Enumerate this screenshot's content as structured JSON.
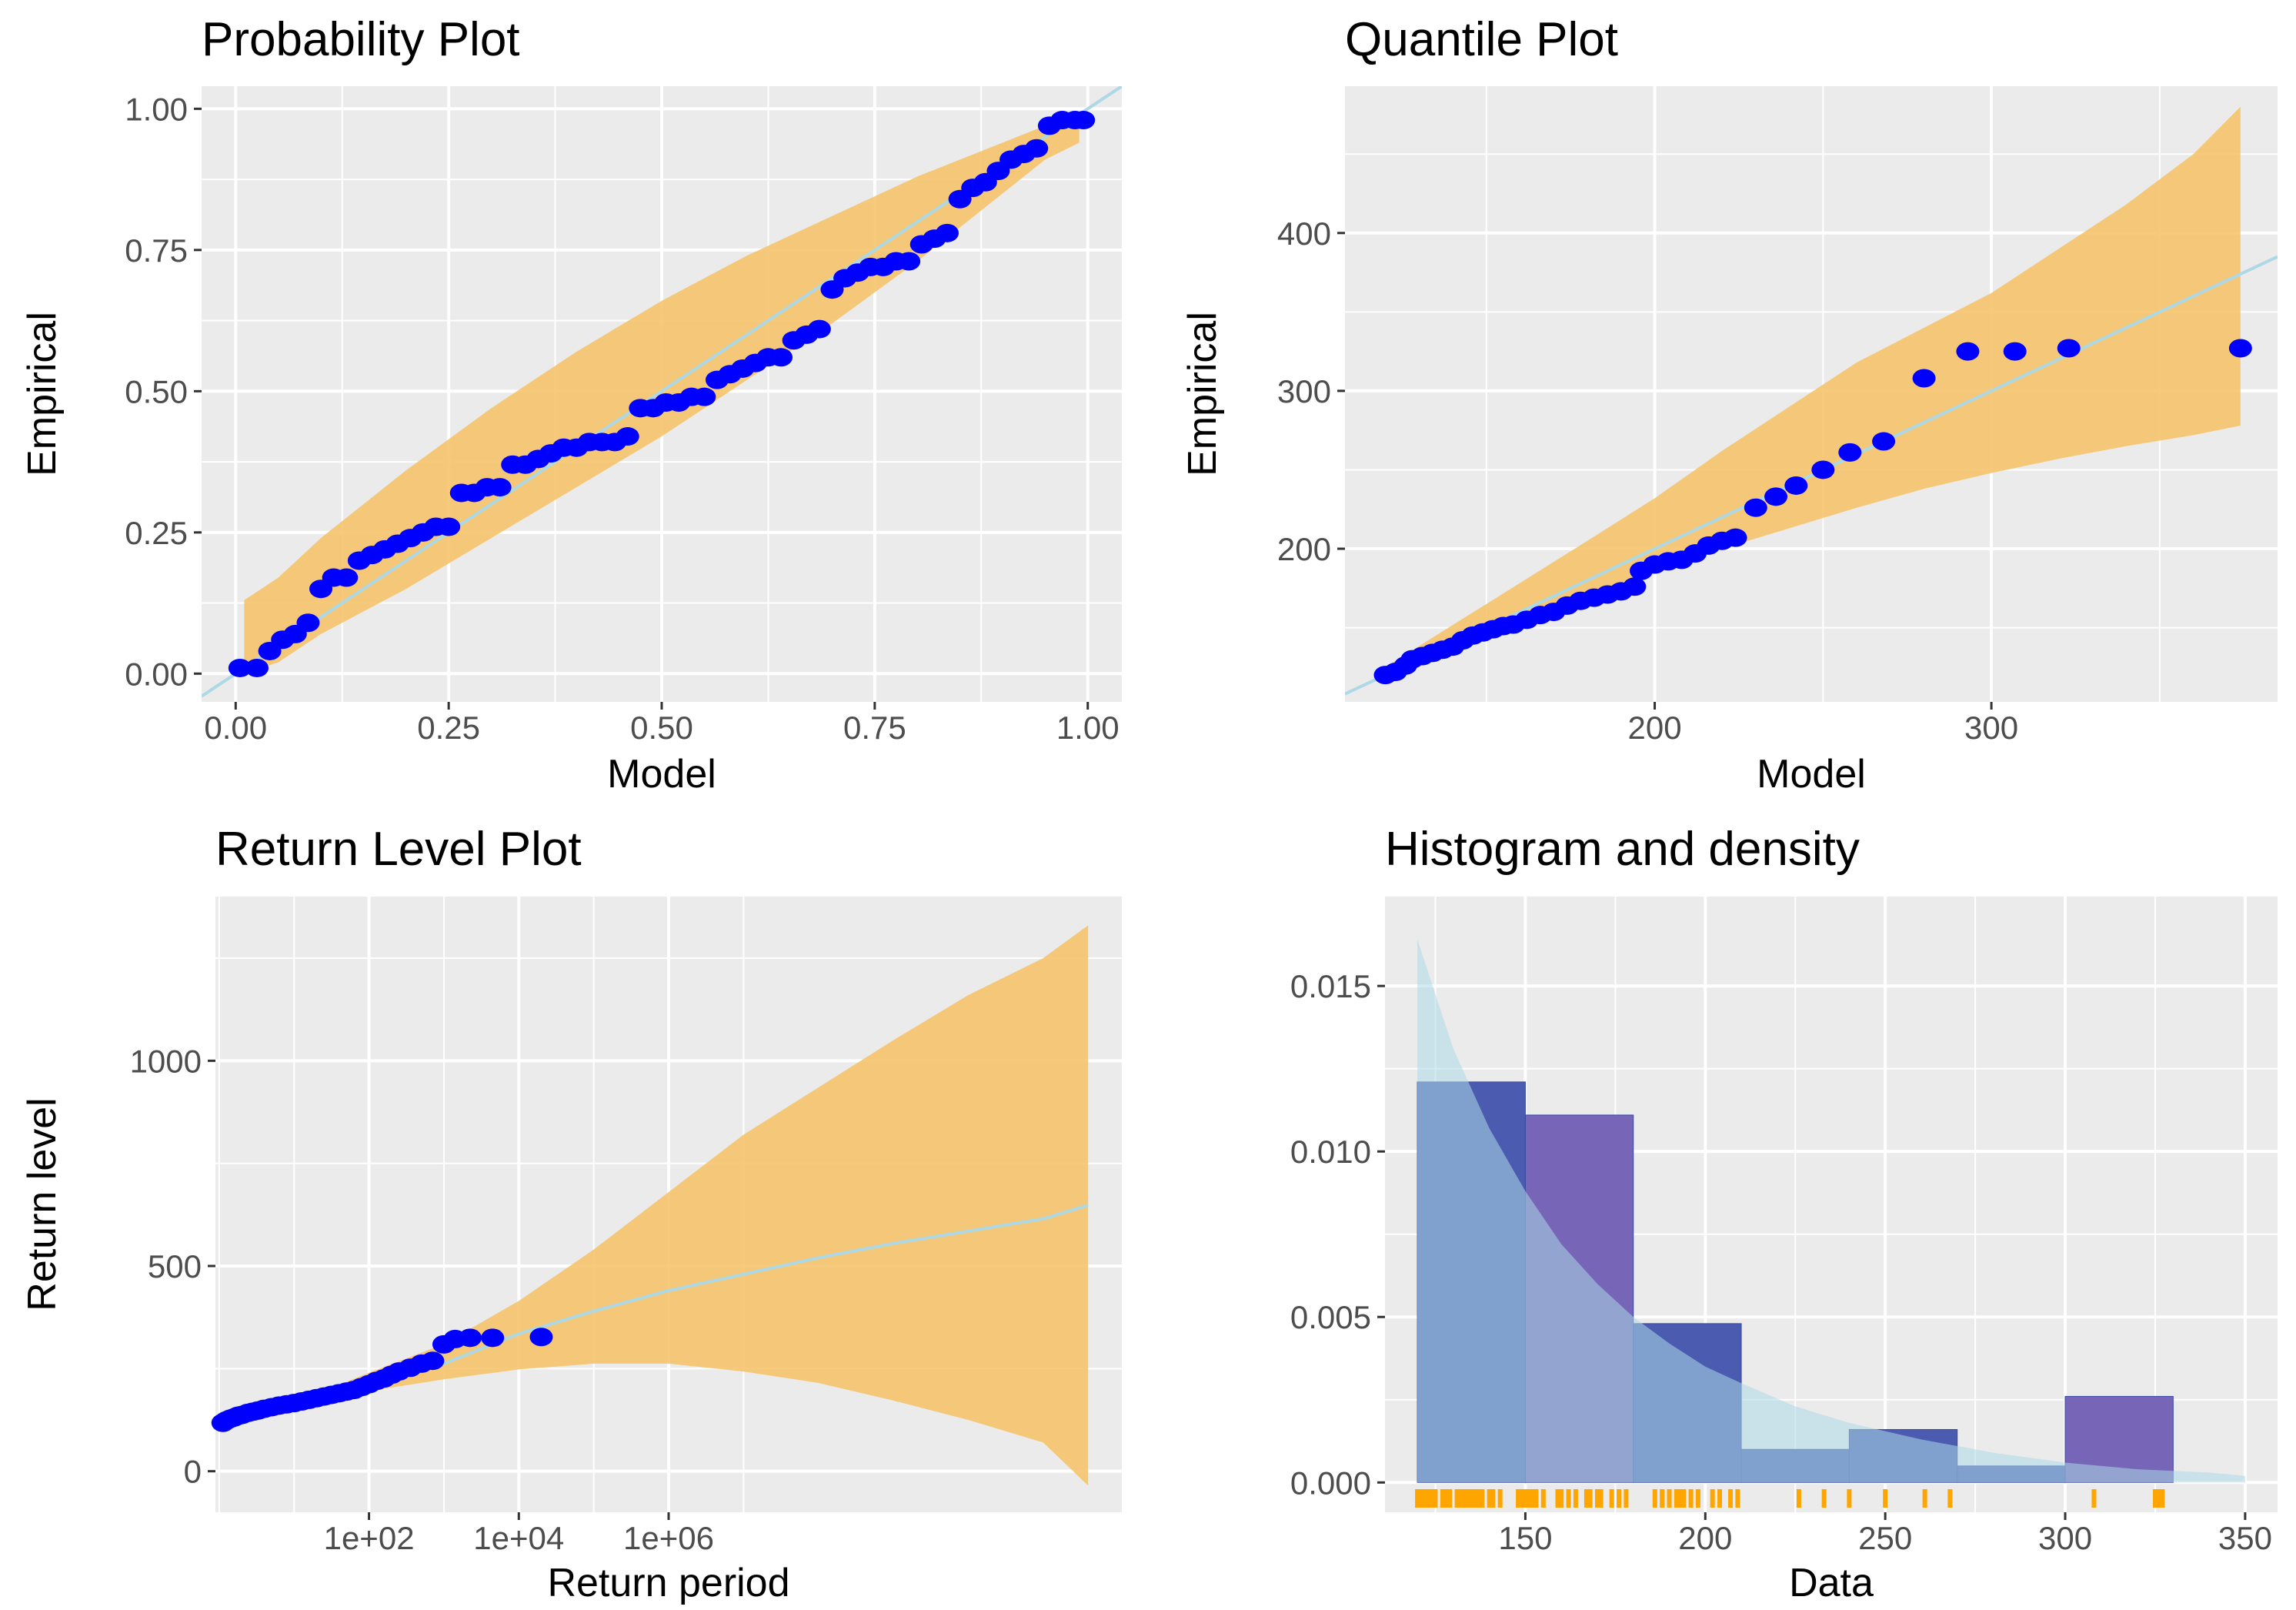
{
  "colors": {
    "panel_bg": "#ebebeb",
    "grid": "#ffffff",
    "band": "#f5c46b",
    "fit_line": "#add8e6",
    "points": "#0000ff",
    "hist_fill": "#4b5bb0",
    "hist_fill_alt": "#7765b8",
    "density": "#add8e6",
    "rug": "#ffa500"
  },
  "chart_data": [
    {
      "id": "probability",
      "type": "scatter",
      "title": "Probability Plot",
      "xlabel": "Model",
      "ylabel": "Empirical",
      "xlim": [
        -0.04,
        1.04
      ],
      "ylim": [
        -0.05,
        1.04
      ],
      "xticks": [
        0,
        0.25,
        0.5,
        0.75,
        1
      ],
      "xtick_labels": [
        "0.00",
        "0.25",
        "0.50",
        "0.75",
        "1.00"
      ],
      "yticks": [
        0,
        0.25,
        0.5,
        0.75,
        1
      ],
      "ytick_labels": [
        "0.00",
        "0.25",
        "0.50",
        "0.75",
        "1.00"
      ],
      "fit_line": [
        [
          -0.04,
          -0.04
        ],
        [
          1.04,
          1.04
        ]
      ],
      "band_upper": [
        [
          0.01,
          0.13
        ],
        [
          0.05,
          0.17
        ],
        [
          0.1,
          0.24
        ],
        [
          0.2,
          0.36
        ],
        [
          0.3,
          0.47
        ],
        [
          0.4,
          0.57
        ],
        [
          0.5,
          0.66
        ],
        [
          0.6,
          0.74
        ],
        [
          0.7,
          0.81
        ],
        [
          0.8,
          0.88
        ],
        [
          0.9,
          0.94
        ],
        [
          0.95,
          0.97
        ],
        [
          0.99,
          0.99
        ]
      ],
      "band_lower": [
        [
          0.99,
          0.94
        ],
        [
          0.95,
          0.91
        ],
        [
          0.9,
          0.85
        ],
        [
          0.8,
          0.73
        ],
        [
          0.7,
          0.62
        ],
        [
          0.6,
          0.52
        ],
        [
          0.5,
          0.42
        ],
        [
          0.4,
          0.33
        ],
        [
          0.3,
          0.24
        ],
        [
          0.2,
          0.15
        ],
        [
          0.1,
          0.07
        ],
        [
          0.05,
          0.02
        ],
        [
          0.01,
          0.0
        ]
      ],
      "points": [
        [
          0.005,
          0.01
        ],
        [
          0.025,
          0.01
        ],
        [
          0.04,
          0.04
        ],
        [
          0.055,
          0.06
        ],
        [
          0.07,
          0.07
        ],
        [
          0.085,
          0.09
        ],
        [
          0.1,
          0.15
        ],
        [
          0.115,
          0.17
        ],
        [
          0.13,
          0.17
        ],
        [
          0.145,
          0.2
        ],
        [
          0.16,
          0.21
        ],
        [
          0.175,
          0.22
        ],
        [
          0.19,
          0.23
        ],
        [
          0.205,
          0.24
        ],
        [
          0.22,
          0.25
        ],
        [
          0.235,
          0.26
        ],
        [
          0.25,
          0.26
        ],
        [
          0.265,
          0.32
        ],
        [
          0.28,
          0.32
        ],
        [
          0.295,
          0.33
        ],
        [
          0.31,
          0.33
        ],
        [
          0.325,
          0.37
        ],
        [
          0.34,
          0.37
        ],
        [
          0.355,
          0.38
        ],
        [
          0.37,
          0.39
        ],
        [
          0.385,
          0.4
        ],
        [
          0.4,
          0.4
        ],
        [
          0.415,
          0.41
        ],
        [
          0.43,
          0.41
        ],
        [
          0.445,
          0.41
        ],
        [
          0.46,
          0.42
        ],
        [
          0.475,
          0.47
        ],
        [
          0.49,
          0.47
        ],
        [
          0.505,
          0.48
        ],
        [
          0.52,
          0.48
        ],
        [
          0.535,
          0.49
        ],
        [
          0.55,
          0.49
        ],
        [
          0.565,
          0.52
        ],
        [
          0.58,
          0.53
        ],
        [
          0.595,
          0.54
        ],
        [
          0.61,
          0.55
        ],
        [
          0.625,
          0.56
        ],
        [
          0.64,
          0.56
        ],
        [
          0.655,
          0.59
        ],
        [
          0.67,
          0.6
        ],
        [
          0.685,
          0.61
        ],
        [
          0.7,
          0.68
        ],
        [
          0.715,
          0.7
        ],
        [
          0.73,
          0.71
        ],
        [
          0.745,
          0.72
        ],
        [
          0.76,
          0.72
        ],
        [
          0.775,
          0.73
        ],
        [
          0.79,
          0.73
        ],
        [
          0.805,
          0.76
        ],
        [
          0.82,
          0.77
        ],
        [
          0.835,
          0.78
        ],
        [
          0.85,
          0.84
        ],
        [
          0.865,
          0.86
        ],
        [
          0.88,
          0.87
        ],
        [
          0.895,
          0.89
        ],
        [
          0.91,
          0.91
        ],
        [
          0.925,
          0.92
        ],
        [
          0.94,
          0.93
        ],
        [
          0.955,
          0.97
        ],
        [
          0.97,
          0.98
        ],
        [
          0.985,
          0.98
        ],
        [
          0.995,
          0.98
        ]
      ]
    },
    {
      "id": "quantile",
      "type": "scatter",
      "title": "Quantile Plot",
      "xlabel": "Model",
      "ylabel": "Empirical",
      "xlim": [
        108,
        385
      ],
      "ylim": [
        103,
        493
      ],
      "xticks": [
        200,
        300
      ],
      "xtick_labels": [
        "200",
        "300"
      ],
      "yticks": [
        200,
        300,
        400
      ],
      "ytick_labels": [
        "200",
        "300",
        "400"
      ],
      "fit_line": [
        [
          108,
          108
        ],
        [
          385,
          385
        ]
      ],
      "band_upper": [
        [
          120,
          125
        ],
        [
          150,
          165
        ],
        [
          180,
          205
        ],
        [
          200,
          232
        ],
        [
          220,
          262
        ],
        [
          240,
          290
        ],
        [
          260,
          318
        ],
        [
          280,
          340
        ],
        [
          300,
          362
        ],
        [
          320,
          390
        ],
        [
          340,
          418
        ],
        [
          360,
          450
        ],
        [
          374,
          480
        ]
      ],
      "band_lower": [
        [
          374,
          278
        ],
        [
          360,
          272
        ],
        [
          340,
          265
        ],
        [
          320,
          257
        ],
        [
          300,
          248
        ],
        [
          280,
          238
        ],
        [
          260,
          226
        ],
        [
          240,
          213
        ],
        [
          220,
          200
        ],
        [
          200,
          186
        ],
        [
          180,
          171
        ],
        [
          150,
          147
        ],
        [
          120,
          118
        ]
      ],
      "points": [
        [
          120,
          120
        ],
        [
          123,
          122
        ],
        [
          126,
          126
        ],
        [
          128,
          130
        ],
        [
          131,
          132
        ],
        [
          134,
          134
        ],
        [
          137,
          136
        ],
        [
          140,
          138
        ],
        [
          143,
          142
        ],
        [
          146,
          145
        ],
        [
          149,
          147
        ],
        [
          152,
          149
        ],
        [
          155,
          151
        ],
        [
          158,
          152
        ],
        [
          162,
          155
        ],
        [
          166,
          158
        ],
        [
          170,
          160
        ],
        [
          174,
          164
        ],
        [
          178,
          167
        ],
        [
          182,
          169
        ],
        [
          186,
          171
        ],
        [
          190,
          173
        ],
        [
          194,
          176
        ],
        [
          196,
          186
        ],
        [
          200,
          190
        ],
        [
          204,
          192
        ],
        [
          208,
          193
        ],
        [
          212,
          197
        ],
        [
          216,
          202
        ],
        [
          220,
          205
        ],
        [
          224,
          207
        ],
        [
          230,
          226
        ],
        [
          236,
          233
        ],
        [
          242,
          240
        ],
        [
          250,
          250
        ],
        [
          258,
          261
        ],
        [
          268,
          268
        ],
        [
          280,
          308
        ],
        [
          293,
          325
        ],
        [
          307,
          325
        ],
        [
          323,
          327
        ],
        [
          374,
          327
        ]
      ]
    },
    {
      "id": "return_level",
      "type": "line",
      "title": "Return Level Plot",
      "xlabel": "Return period",
      "ylabel": "Return level",
      "x_scale": "log10",
      "xlim_log10": [
        -0.05,
        12.05
      ],
      "ylim": [
        -100,
        1400
      ],
      "xticks_log10": [
        2,
        4,
        6
      ],
      "xtick_labels": [
        "1e+02",
        "1e+04",
        "1e+06"
      ],
      "yticks": [
        0,
        500,
        1000
      ],
      "ytick_labels": [
        "0",
        "500",
        "1000"
      ],
      "fit_line": [
        [
          0.05,
          118
        ],
        [
          1.0,
          160
        ],
        [
          2.0,
          210
        ],
        [
          3.0,
          262
        ],
        [
          4.0,
          335
        ],
        [
          5.0,
          390
        ],
        [
          6.0,
          440
        ],
        [
          7.0,
          480
        ],
        [
          8.0,
          520
        ],
        [
          9.0,
          555
        ],
        [
          10.0,
          585
        ],
        [
          11.0,
          615
        ],
        [
          11.6,
          648
        ]
      ],
      "band_upper": [
        [
          0.05,
          118
        ],
        [
          1.0,
          166
        ],
        [
          2.0,
          240
        ],
        [
          3.0,
          310
        ],
        [
          4.0,
          415
        ],
        [
          5.0,
          540
        ],
        [
          6.0,
          680
        ],
        [
          7.0,
          820
        ],
        [
          8.0,
          935
        ],
        [
          9.0,
          1050
        ],
        [
          10.0,
          1160
        ],
        [
          11.0,
          1250
        ],
        [
          11.6,
          1330
        ]
      ],
      "band_lower": [
        [
          11.6,
          -35
        ],
        [
          11.0,
          70
        ],
        [
          10.0,
          125
        ],
        [
          9.0,
          172
        ],
        [
          8.0,
          215
        ],
        [
          7.0,
          243
        ],
        [
          6.0,
          262
        ],
        [
          5.0,
          262
        ],
        [
          4.0,
          248
        ],
        [
          3.0,
          224
        ],
        [
          2.0,
          195
        ],
        [
          1.0,
          155
        ],
        [
          0.05,
          118
        ]
      ],
      "points": [
        [
          0.05,
          118
        ],
        [
          0.1,
          124
        ],
        [
          0.15,
          128
        ],
        [
          0.2,
          131
        ],
        [
          0.25,
          135
        ],
        [
          0.3,
          137
        ],
        [
          0.38,
          142
        ],
        [
          0.45,
          145
        ],
        [
          0.52,
          148
        ],
        [
          0.6,
          152
        ],
        [
          0.7,
          156
        ],
        [
          0.8,
          160
        ],
        [
          0.9,
          163
        ],
        [
          1.0,
          166
        ],
        [
          1.1,
          170
        ],
        [
          1.2,
          174
        ],
        [
          1.3,
          178
        ],
        [
          1.4,
          182
        ],
        [
          1.5,
          186
        ],
        [
          1.6,
          190
        ],
        [
          1.7,
          194
        ],
        [
          1.8,
          198
        ],
        [
          1.9,
          205
        ],
        [
          2.0,
          212
        ],
        [
          2.1,
          220
        ],
        [
          2.2,
          226
        ],
        [
          2.3,
          235
        ],
        [
          2.4,
          243
        ],
        [
          2.55,
          252
        ],
        [
          2.7,
          262
        ],
        [
          2.85,
          269
        ],
        [
          3.0,
          309
        ],
        [
          3.15,
          322
        ],
        [
          3.35,
          325
        ],
        [
          3.65,
          325
        ],
        [
          4.3,
          327
        ]
      ]
    },
    {
      "id": "histogram",
      "type": "bar",
      "title": "Histogram and density",
      "xlabel": "Data",
      "ylabel": "",
      "xlim": [
        111,
        359
      ],
      "ylim": [
        -0.0009,
        0.0177
      ],
      "xticks": [
        150,
        200,
        250,
        300,
        350
      ],
      "xtick_labels": [
        "150",
        "200",
        "250",
        "300",
        "350"
      ],
      "yticks": [
        0,
        0.005,
        0.01,
        0.015
      ],
      "ytick_labels": [
        "0.000",
        "0.005",
        "0.010",
        "0.015"
      ],
      "bins": [
        {
          "x0": 120,
          "x1": 150,
          "value": 0.0121
        },
        {
          "x0": 150,
          "x1": 180,
          "value": 0.0111
        },
        {
          "x0": 180,
          "x1": 210,
          "value": 0.0048
        },
        {
          "x0": 210,
          "x1": 240,
          "value": 0.001
        },
        {
          "x0": 240,
          "x1": 270,
          "value": 0.0016
        },
        {
          "x0": 270,
          "x1": 300,
          "value": 0.0005
        },
        {
          "x0": 300,
          "x1": 330,
          "value": 0.0026
        }
      ],
      "density": [
        [
          120,
          0.0164
        ],
        [
          130,
          0.0131
        ],
        [
          140,
          0.0107
        ],
        [
          150,
          0.0088
        ],
        [
          160,
          0.0072
        ],
        [
          170,
          0.006
        ],
        [
          180,
          0.005
        ],
        [
          190,
          0.0042
        ],
        [
          200,
          0.0035
        ],
        [
          210,
          0.003
        ],
        [
          225,
          0.0023
        ],
        [
          240,
          0.0018
        ],
        [
          260,
          0.0013
        ],
        [
          280,
          0.0009
        ],
        [
          300,
          0.0006
        ],
        [
          320,
          0.0004
        ],
        [
          340,
          0.0003
        ],
        [
          350,
          0.0002
        ]
      ],
      "rug": [
        120,
        121,
        122,
        123,
        124,
        125,
        127,
        128,
        129,
        131,
        132,
        133,
        134,
        135,
        136,
        137,
        138,
        140,
        141,
        143,
        148,
        149,
        150,
        151,
        152,
        153,
        155,
        159,
        160,
        162,
        164,
        167,
        168,
        170,
        171,
        174,
        176,
        178,
        186,
        188,
        190,
        192,
        193,
        194,
        196,
        198,
        202,
        204,
        207,
        209,
        226,
        233,
        240,
        250,
        261,
        268,
        308,
        325,
        326,
        327
      ]
    }
  ]
}
